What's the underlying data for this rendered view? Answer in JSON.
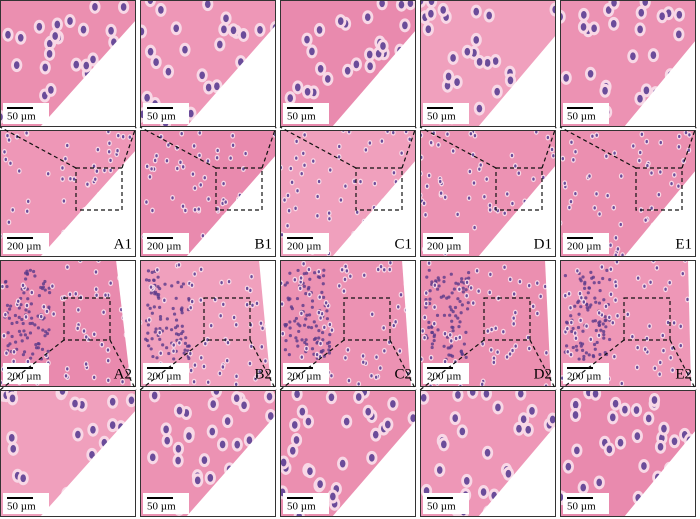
{
  "rows": [
    [
      {
        "scale": "50 µm"
      },
      {
        "scale": "50 µm"
      },
      {
        "scale": "50 µm"
      },
      {
        "scale": "50 µm"
      },
      {
        "scale": "50 µm"
      }
    ],
    [
      {
        "scale": "200 µm",
        "label": "A1"
      },
      {
        "scale": "200 µm",
        "label": "B1"
      },
      {
        "scale": "200 µm",
        "label": "C1"
      },
      {
        "scale": "200 µm",
        "label": "D1"
      },
      {
        "scale": "200 µm",
        "label": "E1"
      }
    ],
    [
      {
        "scale": "200 µm",
        "label": "A2"
      },
      {
        "scale": "200 µm",
        "label": "B2"
      },
      {
        "scale": "200 µm",
        "label": "C2"
      },
      {
        "scale": "200 µm",
        "label": "D2"
      },
      {
        "scale": "200 µm",
        "label": "E2"
      }
    ],
    [
      {
        "scale": "50 µm"
      },
      {
        "scale": "50 µm"
      },
      {
        "scale": "50 µm"
      },
      {
        "scale": "50 µm"
      },
      {
        "scale": "50 µm"
      }
    ]
  ]
}
